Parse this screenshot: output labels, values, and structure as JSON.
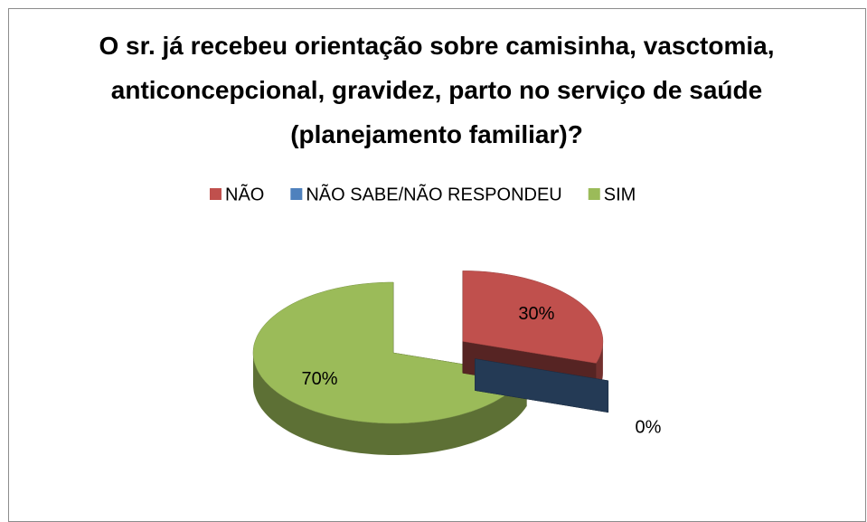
{
  "chart_data": {
    "type": "pie",
    "title": "O sr. já recebeu orientação sobre camisinha, vasctomia, anticoncepcional, gravidez, parto no serviço de saúde (planejamento familiar)?",
    "categories": [
      "NÃO",
      "NÃO SABE/NÃO RESPONDEU",
      "SIM"
    ],
    "values": [
      30,
      0,
      70
    ],
    "value_labels": [
      "30%",
      "0%",
      "70%"
    ],
    "colors": [
      "#c0504d",
      "#4f81bd",
      "#9bbb59"
    ],
    "legend": "top"
  }
}
